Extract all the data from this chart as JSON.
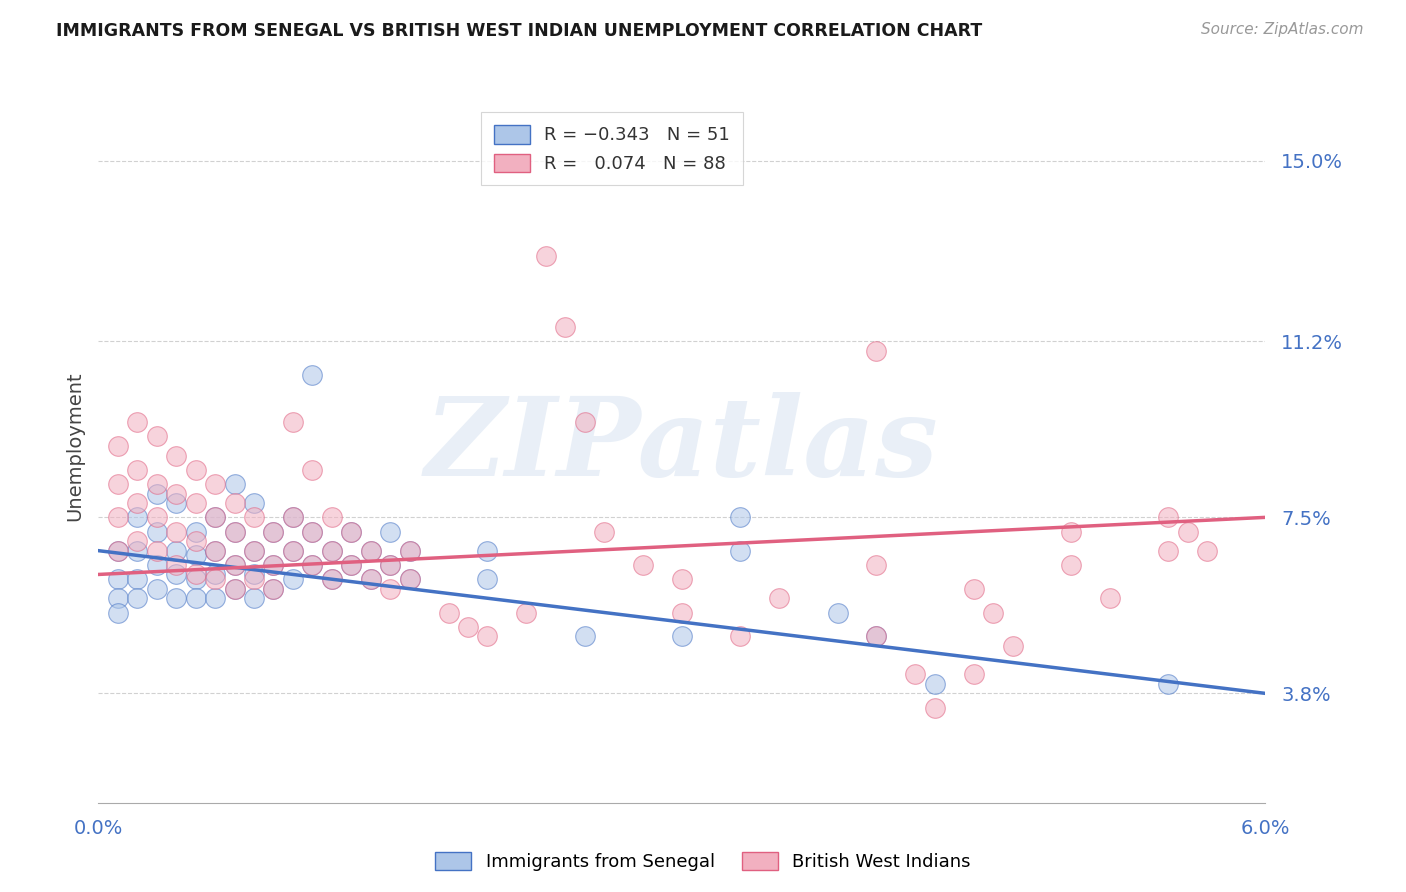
{
  "title": "IMMIGRANTS FROM SENEGAL VS BRITISH WEST INDIAN UNEMPLOYMENT CORRELATION CHART",
  "source": "Source: ZipAtlas.com",
  "ylabel": "Unemployment",
  "ytick_labels": [
    "15.0%",
    "11.2%",
    "7.5%",
    "3.8%"
  ],
  "ytick_values": [
    0.15,
    0.112,
    0.075,
    0.038
  ],
  "xlim": [
    0.0,
    0.06
  ],
  "ylim": [
    0.015,
    0.165
  ],
  "color_blue": "#adc6e8",
  "color_pink": "#f2b0c0",
  "line_blue": "#4472c4",
  "line_pink": "#e06080",
  "watermark": "ZIPatlas",
  "blue_scatter": [
    [
      0.001,
      0.068
    ],
    [
      0.001,
      0.062
    ],
    [
      0.001,
      0.058
    ],
    [
      0.001,
      0.055
    ],
    [
      0.002,
      0.075
    ],
    [
      0.002,
      0.068
    ],
    [
      0.002,
      0.062
    ],
    [
      0.002,
      0.058
    ],
    [
      0.003,
      0.08
    ],
    [
      0.003,
      0.072
    ],
    [
      0.003,
      0.065
    ],
    [
      0.003,
      0.06
    ],
    [
      0.004,
      0.078
    ],
    [
      0.004,
      0.068
    ],
    [
      0.004,
      0.063
    ],
    [
      0.004,
      0.058
    ],
    [
      0.005,
      0.072
    ],
    [
      0.005,
      0.067
    ],
    [
      0.005,
      0.062
    ],
    [
      0.005,
      0.058
    ],
    [
      0.006,
      0.075
    ],
    [
      0.006,
      0.068
    ],
    [
      0.006,
      0.063
    ],
    [
      0.006,
      0.058
    ],
    [
      0.007,
      0.082
    ],
    [
      0.007,
      0.072
    ],
    [
      0.007,
      0.065
    ],
    [
      0.007,
      0.06
    ],
    [
      0.008,
      0.078
    ],
    [
      0.008,
      0.068
    ],
    [
      0.008,
      0.063
    ],
    [
      0.008,
      0.058
    ],
    [
      0.009,
      0.072
    ],
    [
      0.009,
      0.065
    ],
    [
      0.009,
      0.06
    ],
    [
      0.01,
      0.075
    ],
    [
      0.01,
      0.068
    ],
    [
      0.01,
      0.062
    ],
    [
      0.011,
      0.105
    ],
    [
      0.011,
      0.072
    ],
    [
      0.011,
      0.065
    ],
    [
      0.012,
      0.068
    ],
    [
      0.012,
      0.062
    ],
    [
      0.013,
      0.072
    ],
    [
      0.013,
      0.065
    ],
    [
      0.014,
      0.068
    ],
    [
      0.014,
      0.062
    ],
    [
      0.015,
      0.072
    ],
    [
      0.015,
      0.065
    ],
    [
      0.016,
      0.068
    ],
    [
      0.016,
      0.062
    ],
    [
      0.02,
      0.068
    ],
    [
      0.02,
      0.062
    ],
    [
      0.025,
      0.05
    ],
    [
      0.03,
      0.05
    ],
    [
      0.033,
      0.075
    ],
    [
      0.033,
      0.068
    ],
    [
      0.038,
      0.055
    ],
    [
      0.04,
      0.05
    ],
    [
      0.043,
      0.04
    ],
    [
      0.055,
      0.04
    ]
  ],
  "pink_scatter": [
    [
      0.001,
      0.09
    ],
    [
      0.001,
      0.082
    ],
    [
      0.001,
      0.075
    ],
    [
      0.001,
      0.068
    ],
    [
      0.002,
      0.095
    ],
    [
      0.002,
      0.085
    ],
    [
      0.002,
      0.078
    ],
    [
      0.002,
      0.07
    ],
    [
      0.003,
      0.092
    ],
    [
      0.003,
      0.082
    ],
    [
      0.003,
      0.075
    ],
    [
      0.003,
      0.068
    ],
    [
      0.004,
      0.088
    ],
    [
      0.004,
      0.08
    ],
    [
      0.004,
      0.072
    ],
    [
      0.004,
      0.065
    ],
    [
      0.005,
      0.085
    ],
    [
      0.005,
      0.078
    ],
    [
      0.005,
      0.07
    ],
    [
      0.005,
      0.063
    ],
    [
      0.006,
      0.082
    ],
    [
      0.006,
      0.075
    ],
    [
      0.006,
      0.068
    ],
    [
      0.006,
      0.062
    ],
    [
      0.007,
      0.078
    ],
    [
      0.007,
      0.072
    ],
    [
      0.007,
      0.065
    ],
    [
      0.007,
      0.06
    ],
    [
      0.008,
      0.075
    ],
    [
      0.008,
      0.068
    ],
    [
      0.008,
      0.062
    ],
    [
      0.009,
      0.072
    ],
    [
      0.009,
      0.065
    ],
    [
      0.009,
      0.06
    ],
    [
      0.01,
      0.095
    ],
    [
      0.01,
      0.075
    ],
    [
      0.01,
      0.068
    ],
    [
      0.011,
      0.085
    ],
    [
      0.011,
      0.072
    ],
    [
      0.011,
      0.065
    ],
    [
      0.012,
      0.075
    ],
    [
      0.012,
      0.068
    ],
    [
      0.012,
      0.062
    ],
    [
      0.013,
      0.072
    ],
    [
      0.013,
      0.065
    ],
    [
      0.014,
      0.068
    ],
    [
      0.014,
      0.062
    ],
    [
      0.015,
      0.065
    ],
    [
      0.015,
      0.06
    ],
    [
      0.016,
      0.068
    ],
    [
      0.016,
      0.062
    ],
    [
      0.018,
      0.055
    ],
    [
      0.019,
      0.052
    ],
    [
      0.02,
      0.05
    ],
    [
      0.022,
      0.055
    ],
    [
      0.023,
      0.13
    ],
    [
      0.024,
      0.115
    ],
    [
      0.025,
      0.095
    ],
    [
      0.026,
      0.072
    ],
    [
      0.028,
      0.065
    ],
    [
      0.03,
      0.062
    ],
    [
      0.03,
      0.055
    ],
    [
      0.033,
      0.05
    ],
    [
      0.035,
      0.058
    ],
    [
      0.04,
      0.065
    ],
    [
      0.04,
      0.05
    ],
    [
      0.042,
      0.042
    ],
    [
      0.043,
      0.035
    ],
    [
      0.045,
      0.06
    ],
    [
      0.046,
      0.055
    ],
    [
      0.047,
      0.048
    ],
    [
      0.05,
      0.072
    ],
    [
      0.05,
      0.065
    ],
    [
      0.052,
      0.058
    ],
    [
      0.055,
      0.075
    ],
    [
      0.055,
      0.068
    ],
    [
      0.056,
      0.072
    ],
    [
      0.057,
      0.068
    ],
    [
      0.04,
      0.11
    ],
    [
      0.045,
      0.042
    ]
  ],
  "blue_line_x": [
    0.0,
    0.06
  ],
  "blue_line_y": [
    0.068,
    0.038
  ],
  "pink_line_x": [
    0.0,
    0.06
  ],
  "pink_line_y": [
    0.063,
    0.075
  ]
}
